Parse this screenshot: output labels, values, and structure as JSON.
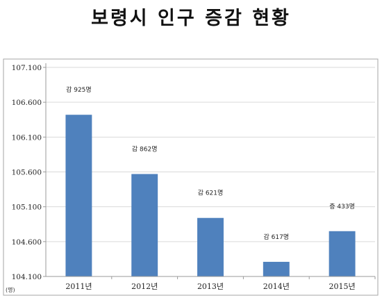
{
  "chart_data": {
    "type": "bar",
    "title": "보령시 인구 증감 현황",
    "unit_label": "(명)",
    "categories": [
      "2011년",
      "2012년",
      "2013년",
      "2014년",
      "2015년"
    ],
    "values": [
      106420,
      105570,
      104940,
      104310,
      104750
    ],
    "data_labels": [
      "감 925명",
      "감 862명",
      "감 621명",
      "감 617명",
      "증 433명"
    ],
    "y_ticks": [
      "104.100",
      "104.600",
      "105.100",
      "105.600",
      "106.100",
      "106.600",
      "107.100"
    ],
    "ylim": [
      104100,
      107100
    ],
    "grid": true,
    "legend": "none",
    "colors": {
      "bar": "#4f81bd",
      "grid": "#d9d9d9",
      "axis": "#9a9a9a",
      "frame": "#a6a6a6"
    }
  }
}
